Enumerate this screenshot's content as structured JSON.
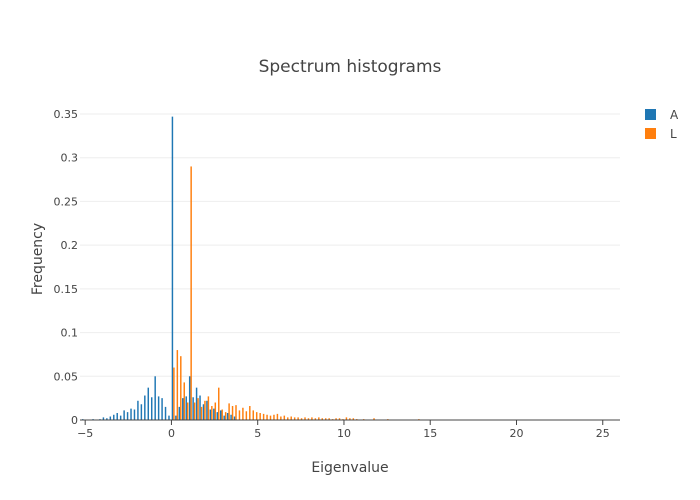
{
  "chart_data": {
    "type": "bar",
    "title": "Spectrum histograms",
    "xlabel": "Eigenvalue",
    "ylabel": "Frequency",
    "xlim": [
      -5.3,
      26
    ],
    "ylim": [
      0,
      0.35
    ],
    "grid": true,
    "legend_position": "top-right",
    "bin_width": 0.2,
    "x_ticks": [
      {
        "value": -5,
        "label": "−5"
      },
      {
        "value": 0,
        "label": "0"
      },
      {
        "value": 5,
        "label": "5"
      },
      {
        "value": 10,
        "label": "10"
      },
      {
        "value": 15,
        "label": "15"
      },
      {
        "value": 20,
        "label": "20"
      },
      {
        "value": 25,
        "label": "25"
      }
    ],
    "y_ticks": [
      {
        "value": 0,
        "label": "0"
      },
      {
        "value": 0.05,
        "label": "0.05"
      },
      {
        "value": 0.1,
        "label": "0.1"
      },
      {
        "value": 0.15,
        "label": "0.15"
      },
      {
        "value": 0.2,
        "label": "0.2"
      },
      {
        "value": 0.25,
        "label": "0.25"
      },
      {
        "value": 0.3,
        "label": "0.3"
      },
      {
        "value": 0.35,
        "label": "0.35"
      }
    ],
    "series": [
      {
        "name": "A",
        "color": "#1f77b4",
        "x": [
          -5.1,
          -4.9,
          -4.7,
          -4.5,
          -4.3,
          -4.1,
          -3.9,
          -3.7,
          -3.5,
          -3.3,
          -3.1,
          -2.9,
          -2.7,
          -2.5,
          -2.3,
          -2.1,
          -1.9,
          -1.7,
          -1.5,
          -1.3,
          -1.1,
          -0.9,
          -0.7,
          -0.5,
          -0.3,
          -0.1,
          0.1,
          0.3,
          0.5,
          0.7,
          0.9,
          1.1,
          1.3,
          1.5,
          1.7,
          1.9,
          2.1,
          2.3,
          2.5,
          2.7,
          2.9,
          3.1,
          3.3,
          3.5,
          3.7
        ],
        "values": [
          0.001,
          0.0,
          0.0,
          0.001,
          0.0,
          0.001,
          0.003,
          0.002,
          0.004,
          0.006,
          0.008,
          0.005,
          0.011,
          0.009,
          0.013,
          0.012,
          0.022,
          0.018,
          0.028,
          0.037,
          0.026,
          0.05,
          0.027,
          0.025,
          0.015,
          0.005,
          0.347,
          0.005,
          0.015,
          0.025,
          0.027,
          0.05,
          0.026,
          0.037,
          0.028,
          0.018,
          0.022,
          0.012,
          0.013,
          0.009,
          0.011,
          0.005,
          0.008,
          0.006,
          0.004
        ]
      },
      {
        "name": "L",
        "color": "#ff7f0e",
        "x": [
          0.1,
          0.3,
          0.5,
          0.7,
          0.9,
          1.1,
          1.3,
          1.5,
          1.7,
          1.9,
          2.1,
          2.3,
          2.5,
          2.7,
          2.9,
          3.1,
          3.3,
          3.5,
          3.7,
          3.9,
          4.1,
          4.3,
          4.5,
          4.7,
          4.9,
          5.1,
          5.3,
          5.5,
          5.7,
          5.9,
          6.1,
          6.3,
          6.5,
          6.7,
          6.9,
          7.1,
          7.3,
          7.5,
          7.7,
          7.9,
          8.1,
          8.3,
          8.5,
          8.7,
          8.9,
          9.1,
          9.3,
          9.5,
          9.7,
          9.9,
          10.1,
          10.3,
          10.5,
          10.7,
          11.1,
          11.7,
          12.5,
          14.3
        ],
        "values": [
          0.06,
          0.08,
          0.073,
          0.043,
          0.02,
          0.29,
          0.02,
          0.025,
          0.015,
          0.022,
          0.027,
          0.016,
          0.02,
          0.037,
          0.012,
          0.009,
          0.019,
          0.016,
          0.017,
          0.011,
          0.014,
          0.01,
          0.016,
          0.011,
          0.009,
          0.008,
          0.007,
          0.006,
          0.005,
          0.006,
          0.007,
          0.004,
          0.005,
          0.003,
          0.004,
          0.003,
          0.003,
          0.002,
          0.003,
          0.002,
          0.003,
          0.002,
          0.003,
          0.002,
          0.002,
          0.002,
          0.001,
          0.002,
          0.002,
          0.001,
          0.003,
          0.002,
          0.002,
          0.001,
          0.001,
          0.002,
          0.001,
          0.001
        ]
      }
    ]
  }
}
